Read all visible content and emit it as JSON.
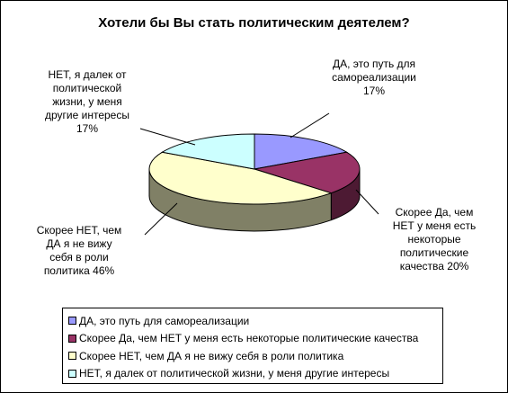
{
  "chart_data": {
    "type": "pie",
    "title": "Хотели бы Вы стать политическим деятелем?",
    "three_d": true,
    "legend_position": "bottom",
    "slices": [
      {
        "legend": "ДА, это путь для самореализации",
        "label": "ДА, это путь для\nсамореализации\n17%",
        "value": 17,
        "color": "#9999ff",
        "side_color": "#4d4d80"
      },
      {
        "legend": "Скорее Да, чем НЕТ у меня есть некоторые политические качества",
        "label": "Скорее Да, чем\nНЕТ у меня есть\nнекоторые\nполитические\nкачества 20%",
        "value": 20,
        "color": "#993366",
        "side_color": "#4d1a33"
      },
      {
        "legend": "Скорее НЕТ, чем ДА я не вижу себя в роли политика",
        "label": "Скорее НЕТ, чем\nДА я не вижу\nсебя в роли\nполитика 46%",
        "value": 46,
        "color": "#ffffcc",
        "side_color": "#808066"
      },
      {
        "legend": "НЕТ, я далек от политической жизни, у меня другие интересы",
        "label": "НЕТ, я далек от\nполитической\nжизни, у меня\nдругие интересы\n17%",
        "value": 17,
        "color": "#ccffff",
        "side_color": "#668080"
      }
    ]
  }
}
